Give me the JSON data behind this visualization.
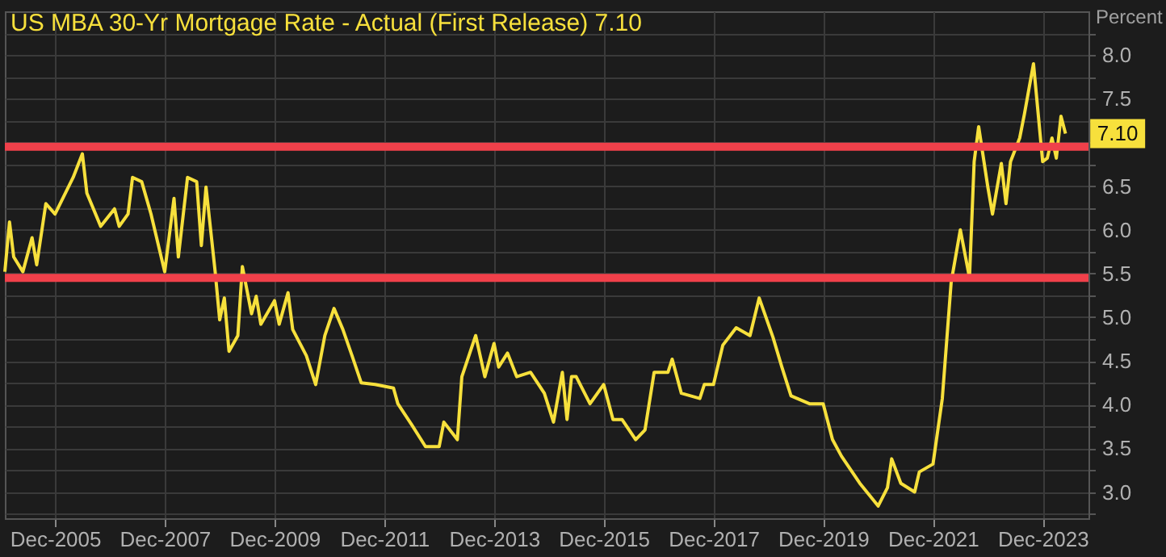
{
  "chart_data": {
    "type": "line",
    "title": "US MBA 30-Yr Mortgage Rate - Actual (First Release)  7.10",
    "ylabel": "Percent",
    "x": [
      "2005-01",
      "2005-02",
      "2005-03",
      "2005-05",
      "2005-07",
      "2005-08",
      "2005-10",
      "2005-12",
      "2006-04",
      "2006-06",
      "2006-07",
      "2006-10",
      "2007-01",
      "2007-02",
      "2007-04",
      "2007-05",
      "2007-07",
      "2007-09",
      "2007-12",
      "2008-02",
      "2008-03",
      "2008-05",
      "2008-07",
      "2008-08",
      "2008-09",
      "2008-11",
      "2008-12",
      "2009-01",
      "2009-02",
      "2009-04",
      "2009-05",
      "2009-07",
      "2009-08",
      "2009-09",
      "2009-12",
      "2010-01",
      "2010-03",
      "2010-04",
      "2010-07",
      "2010-09",
      "2010-11",
      "2011-01",
      "2011-03",
      "2011-05",
      "2011-07",
      "2011-10",
      "2012-02",
      "2012-03",
      "2012-06",
      "2012-09",
      "2012-12",
      "2013-01",
      "2013-04",
      "2013-05",
      "2013-08",
      "2013-10",
      "2013-12",
      "2014-01",
      "2014-03",
      "2014-05",
      "2014-08",
      "2014-11",
      "2015-01",
      "2015-03",
      "2015-04",
      "2015-05",
      "2015-06",
      "2015-09",
      "2015-12",
      "2016-02",
      "2016-04",
      "2016-07",
      "2016-09",
      "2016-11",
      "2017-02",
      "2017-03",
      "2017-05",
      "2017-09",
      "2017-10",
      "2017-12",
      "2018-02",
      "2018-05",
      "2018-08",
      "2018-10",
      "2019-01",
      "2019-03",
      "2019-05",
      "2019-09",
      "2019-12",
      "2020-02",
      "2020-04",
      "2020-08",
      "2020-12",
      "2021-02",
      "2021-03",
      "2021-05",
      "2021-08",
      "2021-09",
      "2021-12",
      "2022-02",
      "2022-04",
      "2022-06",
      "2022-08",
      "2022-09",
      "2022-10",
      "2022-12",
      "2023-01",
      "2023-03",
      "2023-04",
      "2023-05",
      "2023-07",
      "2023-08",
      "2023-10",
      "2023-12",
      "2024-01",
      "2024-02",
      "2024-03",
      "2024-04",
      "2024-05"
    ],
    "series": [
      {
        "color": "#f7e03c",
        "values": [
          5.52,
          6.09,
          5.69,
          5.52,
          5.91,
          5.6,
          6.3,
          6.18,
          6.6,
          6.87,
          6.42,
          6.04,
          6.24,
          6.04,
          6.18,
          6.6,
          6.55,
          6.18,
          5.52,
          6.36,
          5.69,
          6.6,
          6.55,
          5.82,
          6.49,
          5.52,
          4.97,
          5.22,
          4.61,
          4.79,
          5.58,
          5.04,
          5.24,
          4.92,
          5.19,
          4.92,
          5.28,
          4.86,
          4.56,
          4.23,
          4.79,
          5.1,
          4.86,
          4.56,
          4.25,
          4.23,
          4.19,
          4.01,
          3.77,
          3.52,
          3.52,
          3.8,
          3.6,
          4.32,
          4.79,
          4.32,
          4.7,
          4.43,
          4.59,
          4.32,
          4.37,
          4.13,
          3.8,
          4.37,
          3.83,
          4.32,
          4.32,
          4.01,
          4.23,
          3.83,
          3.83,
          3.6,
          3.71,
          4.37,
          4.37,
          4.52,
          4.13,
          4.07,
          4.23,
          4.23,
          4.68,
          4.88,
          4.79,
          5.22,
          4.77,
          4.43,
          4.1,
          4.01,
          4.01,
          3.6,
          3.41,
          3.1,
          2.84,
          3.05,
          3.38,
          3.1,
          3.0,
          3.23,
          3.32,
          4.07,
          5.4,
          6.0,
          5.45,
          6.78,
          7.18,
          6.49,
          6.18,
          6.76,
          6.3,
          6.78,
          7.05,
          7.32,
          7.9,
          6.78,
          6.82,
          7.05,
          6.82,
          7.3,
          7.1
        ]
      }
    ],
    "xlim": [
      "2005-01",
      "2024-10"
    ],
    "xticks": [
      {
        "value": "2005-12",
        "label": "Dec-2005"
      },
      {
        "value": "2007-12",
        "label": "Dec-2007"
      },
      {
        "value": "2009-12",
        "label": "Dec-2009"
      },
      {
        "value": "2011-12",
        "label": "Dec-2011"
      },
      {
        "value": "2013-12",
        "label": "Dec-2013"
      },
      {
        "value": "2015-12",
        "label": "Dec-2015"
      },
      {
        "value": "2017-12",
        "label": "Dec-2017"
      },
      {
        "value": "2019-12",
        "label": "Dec-2019"
      },
      {
        "value": "2021-12",
        "label": "Dec-2021"
      },
      {
        "value": "2023-12",
        "label": "Dec-2023"
      }
    ],
    "ylim": [
      2.7,
      8.5
    ],
    "yticks": [
      {
        "value": 2.75,
        "label": null
      },
      {
        "value": 3,
        "label": "3.0"
      },
      {
        "value": 3.25,
        "label": null
      },
      3.5,
      {
        "value": 3.75,
        "label": null
      },
      {
        "value": 4,
        "label": "4.0"
      },
      {
        "value": 4.25,
        "label": null
      },
      4.5,
      {
        "value": 4.75,
        "label": null
      },
      {
        "value": 5,
        "label": "5.0"
      },
      {
        "value": 5.25,
        "label": null
      },
      5.5,
      {
        "value": 5.75,
        "label": null
      },
      {
        "value": 6,
        "label": "6.0"
      },
      {
        "value": 6.25,
        "label": null
      },
      6.5,
      {
        "value": 6.75,
        "label": null
      },
      {
        "value": 7,
        "label": null
      },
      {
        "value": 7.25,
        "label": null
      },
      7.5,
      {
        "value": 7.75,
        "label": null
      },
      {
        "value": 8,
        "label": "8.0"
      },
      {
        "value": 8.25,
        "label": null
      }
    ],
    "ref_lines": [
      {
        "axis": "y",
        "value": 6.95,
        "color": "#f0404a"
      },
      {
        "axis": "y",
        "value": 5.45,
        "color": "#f0404a"
      }
    ],
    "annotations": [
      {
        "text": "7.10",
        "x": "2024-05",
        "y": 7.1
      }
    ],
    "grid": true,
    "legend": false,
    "line_style": "solid"
  }
}
